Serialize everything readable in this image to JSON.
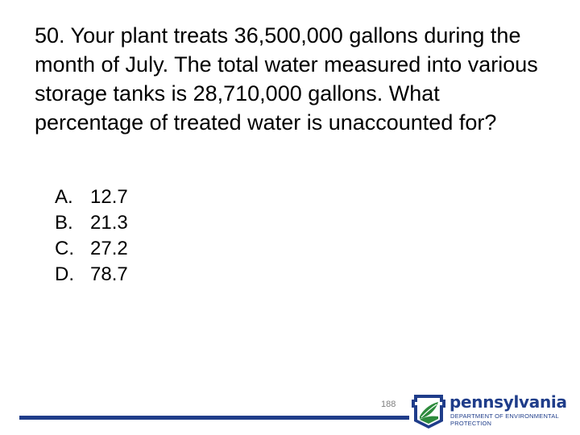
{
  "question": {
    "text": "50. Your plant treats 36,500,000 gallons during the month of July.  The total water measured into various storage tanks is 28,710,000 gallons.  What percentage of treated water is unaccounted for?"
  },
  "options": [
    {
      "letter": "A.",
      "value": "12.7"
    },
    {
      "letter": "B.",
      "value": "21.3"
    },
    {
      "letter": "C.",
      "value": "27.2"
    },
    {
      "letter": "D.",
      "value": "78.7"
    }
  ],
  "footer": {
    "page_number": "188",
    "logo_word": "pennsylvania",
    "logo_sub_line1": "DEPARTMENT OF ENVIRONMENTAL",
    "logo_sub_line2": "PROTECTION",
    "bar_color": "#1f3d8a",
    "logo_blue": "#1f3d8a",
    "logo_green": "#2e8b3d"
  }
}
